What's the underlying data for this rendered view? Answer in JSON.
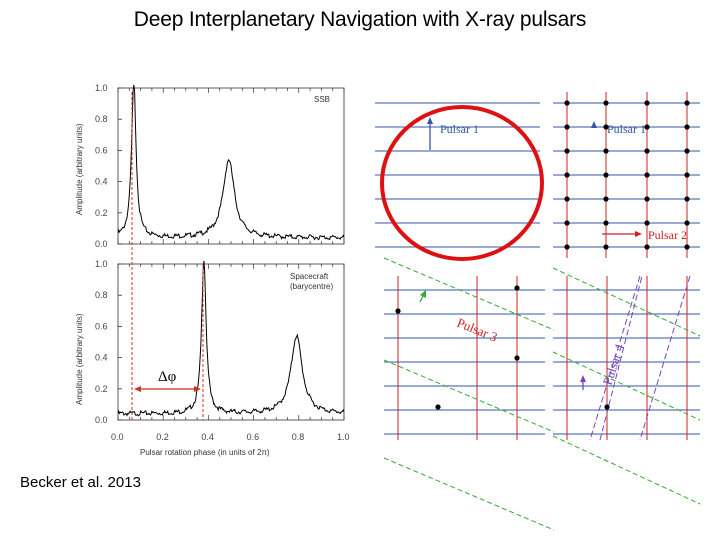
{
  "slide": {
    "title": "Deep  Interplanetary Navigation  with X-ray  pulsars",
    "caption": "Becker et al. 2013"
  },
  "figure_left": {
    "top_panel_tag": "SSB",
    "bottom_panel_tag": "Spacecraft",
    "bottom_panel_subtag": "(barycentre)",
    "ylabel": "Amplitude (arbitrary units)",
    "xlabel": "Pulsar rotation phase (in units of 2π)",
    "delta_label": "Δφ",
    "y_ticks": [
      "1.0",
      "0.8",
      "0.6",
      "0.4",
      "0.2",
      "0.0"
    ],
    "x_ticks": [
      "0.0",
      "0.2",
      "0.4",
      "0.6",
      "0.8",
      "1.0"
    ]
  },
  "figure_right": {
    "pulsar1": "Pulsar 1",
    "pulsar2": "Pulsar 2",
    "pulsar3": "Pulsar 3",
    "pulsar4": "Pulsar 4",
    "colors": {
      "blue": "#3355aa",
      "red": "#cc2222",
      "green": "#33aa33",
      "purple": "#7744bb",
      "circle": "#dd1111"
    }
  }
}
